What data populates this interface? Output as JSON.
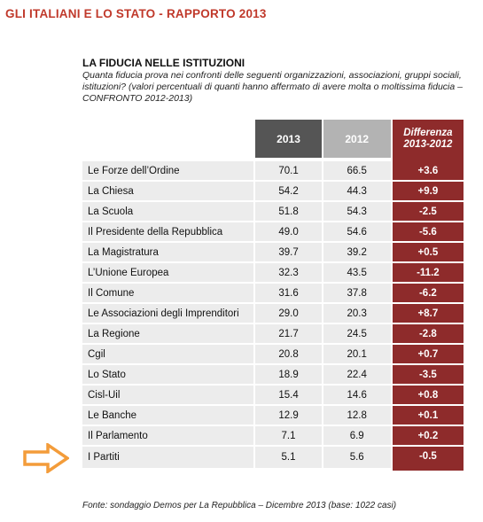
{
  "page_title": "GLI ITALIANI E LO STATO - RAPPORTO 2013",
  "table_title": "LA FIDUCIA NELLE ISTITUZIONI",
  "table_subtitle": "Quanta fiducia prova nei confronti delle seguenti organizzazioni, associazioni, gruppi sociali, istituzioni? (valori percentuali di quanti hanno affermato di avere molta o moltissima fiducia – CONFRONTO 2012-2013)",
  "headers": {
    "col_2013": "2013",
    "col_2012": "2012",
    "col_diff_line1": "Differenza",
    "col_diff_line2": "2013-2012"
  },
  "rows": [
    {
      "label": "Le Forze dell’Ordine",
      "v2013": "70.1",
      "v2012": "66.5",
      "diff": "+3.6"
    },
    {
      "label": "La Chiesa",
      "v2013": "54.2",
      "v2012": "44.3",
      "diff": "+9.9"
    },
    {
      "label": "La Scuola",
      "v2013": "51.8",
      "v2012": "54.3",
      "diff": "-2.5"
    },
    {
      "label": "Il Presidente della Repubblica",
      "v2013": "49.0",
      "v2012": "54.6",
      "diff": "-5.6"
    },
    {
      "label": "La Magistratura",
      "v2013": "39.7",
      "v2012": "39.2",
      "diff": "+0.5"
    },
    {
      "label": "L’Unione Europea",
      "v2013": "32.3",
      "v2012": "43.5",
      "diff": "-11.2"
    },
    {
      "label": "Il Comune",
      "v2013": "31.6",
      "v2012": "37.8",
      "diff": "-6.2"
    },
    {
      "label": "Le Associazioni degli Imprenditori",
      "v2013": "29.0",
      "v2012": "20.3",
      "diff": "+8.7"
    },
    {
      "label": "La Regione",
      "v2013": "21.7",
      "v2012": "24.5",
      "diff": "-2.8"
    },
    {
      "label": "Cgil",
      "v2013": "20.8",
      "v2012": "20.1",
      "diff": "+0.7"
    },
    {
      "label": "Lo Stato",
      "v2013": "18.9",
      "v2012": "22.4",
      "diff": "-3.5"
    },
    {
      "label": "Cisl-Uil",
      "v2013": "15.4",
      "v2012": "14.6",
      "diff": "+0.8"
    },
    {
      "label": "Le Banche",
      "v2013": "12.9",
      "v2012": "12.8",
      "diff": "+0.1"
    },
    {
      "label": "Il Parlamento",
      "v2013": "7.1",
      "v2012": "6.9",
      "diff": "+0.2"
    },
    {
      "label": "I Partiti",
      "v2013": "5.1",
      "v2012": "5.6",
      "diff": "-0.5"
    }
  ],
  "source": "Fonte: sondaggio Demos per La Repubblica – Dicembre 2013 (base: 1022 casi)",
  "colors": {
    "title": "#c0392b",
    "header_2013": "#555555",
    "header_2012": "#b3b3b3",
    "diff_column": "#8e2b2b",
    "row_bg": "#ececec",
    "arrow": "#f39c3a"
  },
  "highlight_arrow": {
    "icon": "arrow-right-icon",
    "points_to_row": "I Partiti"
  }
}
